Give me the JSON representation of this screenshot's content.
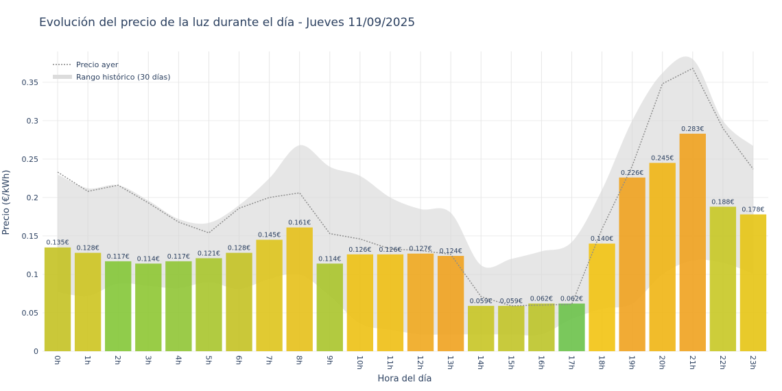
{
  "chart_data": {
    "type": "bar",
    "title": "Evolución del precio de la luz durante el día - Jueves 11/09/2025",
    "xlabel": "Hora del día",
    "ylabel": "Precio (€/kWh)",
    "ylim": [
      0,
      0.39
    ],
    "yticks": [
      0,
      0.05,
      0.1,
      0.15,
      0.2,
      0.25,
      0.3,
      0.35
    ],
    "ytick_labels": [
      "0",
      "0.05",
      "0.1",
      "0.15",
      "0.2",
      "0.25",
      "0.3",
      "0.35"
    ],
    "grid": true,
    "legend_position": "top-left",
    "categories": [
      "0h",
      "1h",
      "2h",
      "3h",
      "4h",
      "5h",
      "6h",
      "7h",
      "8h",
      "9h",
      "10h",
      "11h",
      "12h",
      "13h",
      "14h",
      "15h",
      "16h",
      "17h",
      "18h",
      "19h",
      "20h",
      "21h",
      "22h",
      "23h"
    ],
    "values": [
      0.135,
      0.128,
      0.117,
      0.114,
      0.117,
      0.121,
      0.128,
      0.145,
      0.161,
      0.114,
      0.126,
      0.126,
      0.127,
      0.124,
      0.059,
      0.059,
      0.062,
      0.062,
      0.14,
      0.226,
      0.245,
      0.283,
      0.188,
      0.178
    ],
    "value_labels": [
      "0.135€",
      "0.128€",
      "0.117€",
      "0.114€",
      "0.117€",
      "0.121€",
      "0.128€",
      "0.145€",
      "0.161€",
      "0.114€",
      "0.126€",
      "0.126€",
      "0.127€",
      "0.124€",
      "0.059€",
      "0.059€",
      "0.062€",
      "0.062€",
      "0.140€",
      "0.226€",
      "0.245€",
      "0.283€",
      "0.188€",
      "0.178€"
    ],
    "bar_colors": [
      "#c4c224",
      "#cdc420",
      "#84c637",
      "#8ec633",
      "#90c535",
      "#a9c52c",
      "#c4c224",
      "#dec41c",
      "#e6c019",
      "#aac42b",
      "#edc114",
      "#eebf14",
      "#f0a81f",
      "#f0a21f",
      "#c8c525",
      "#c2c428",
      "#bcc429",
      "#6cc24a",
      "#f2c312",
      "#f0a21f",
      "#f0b514",
      "#f0a21f",
      "#c8c825",
      "#e6c414"
    ],
    "series": [
      {
        "name": "Precio ayer",
        "style": "dotted-line",
        "color": "#888888",
        "values": [
          0.233,
          0.208,
          0.216,
          0.193,
          0.168,
          0.154,
          0.186,
          0.2,
          0.206,
          0.153,
          0.146,
          0.133,
          0.131,
          0.126,
          0.071,
          0.059,
          0.06,
          0.061,
          0.159,
          0.241,
          0.348,
          0.368,
          0.29,
          0.237
        ]
      },
      {
        "name": "Rango histórico (30 días)",
        "style": "band",
        "color": "#d8d8d8",
        "upper": [
          0.23,
          0.212,
          0.216,
          0.196,
          0.172,
          0.167,
          0.19,
          0.225,
          0.268,
          0.24,
          0.228,
          0.2,
          0.185,
          0.18,
          0.112,
          0.12,
          0.13,
          0.142,
          0.21,
          0.3,
          0.362,
          0.38,
          0.3,
          0.267
        ],
        "lower": [
          0.077,
          0.072,
          0.088,
          0.085,
          0.082,
          0.09,
          0.081,
          0.094,
          0.1,
          0.072,
          0.036,
          0.028,
          0.022,
          0.022,
          0.022,
          0.022,
          0.022,
          0.042,
          0.055,
          0.062,
          0.1,
          0.118,
          0.115,
          0.101
        ]
      }
    ]
  }
}
